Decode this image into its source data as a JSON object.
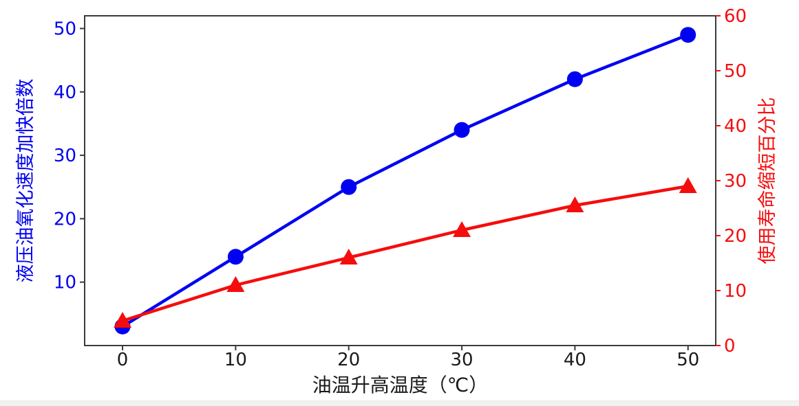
{
  "page": {
    "background_color": "#ffffff",
    "bottom_strip_color": "#f1f1ef"
  },
  "chart_data": {
    "type": "line",
    "title": "",
    "xlabel": "油温升高温度（℃）",
    "ylabel_left": "液压油氧化速度加快倍数",
    "ylabel_right": "使用寿命缩短百分比",
    "x": [
      0,
      10,
      20,
      30,
      40,
      50
    ],
    "series": [
      {
        "name": "液压油氧化速度加快倍数",
        "axis": "left",
        "marker": "circle",
        "color": "#0000f2",
        "values": [
          3,
          14,
          25,
          34,
          42,
          49
        ]
      },
      {
        "name": "使用寿命缩短百分比",
        "axis": "right",
        "marker": "triangle-up",
        "color": "#f50d0d",
        "values": [
          4.5,
          11,
          16,
          21,
          25.5,
          29
        ]
      }
    ],
    "xticks": [
      0,
      10,
      20,
      30,
      40,
      50
    ],
    "yticks_left": [
      10,
      20,
      30,
      40,
      50
    ],
    "yticks_right": [
      0,
      10,
      20,
      30,
      40,
      50,
      60
    ],
    "xlim": [
      -3.35,
      52.45
    ],
    "ylim_left": [
      0,
      52
    ],
    "ylim_right": [
      0,
      60
    ],
    "grid": false,
    "legend": "none",
    "axis_color": "#3a3a3a",
    "x_tick_label_color": "#1a1a1a",
    "left_tick_label_color": "#0000f2",
    "right_tick_label_color": "#f50d0d",
    "right_tick_mark_color": "#f50d0d",
    "xlabel_color": "#1a1a1a"
  }
}
